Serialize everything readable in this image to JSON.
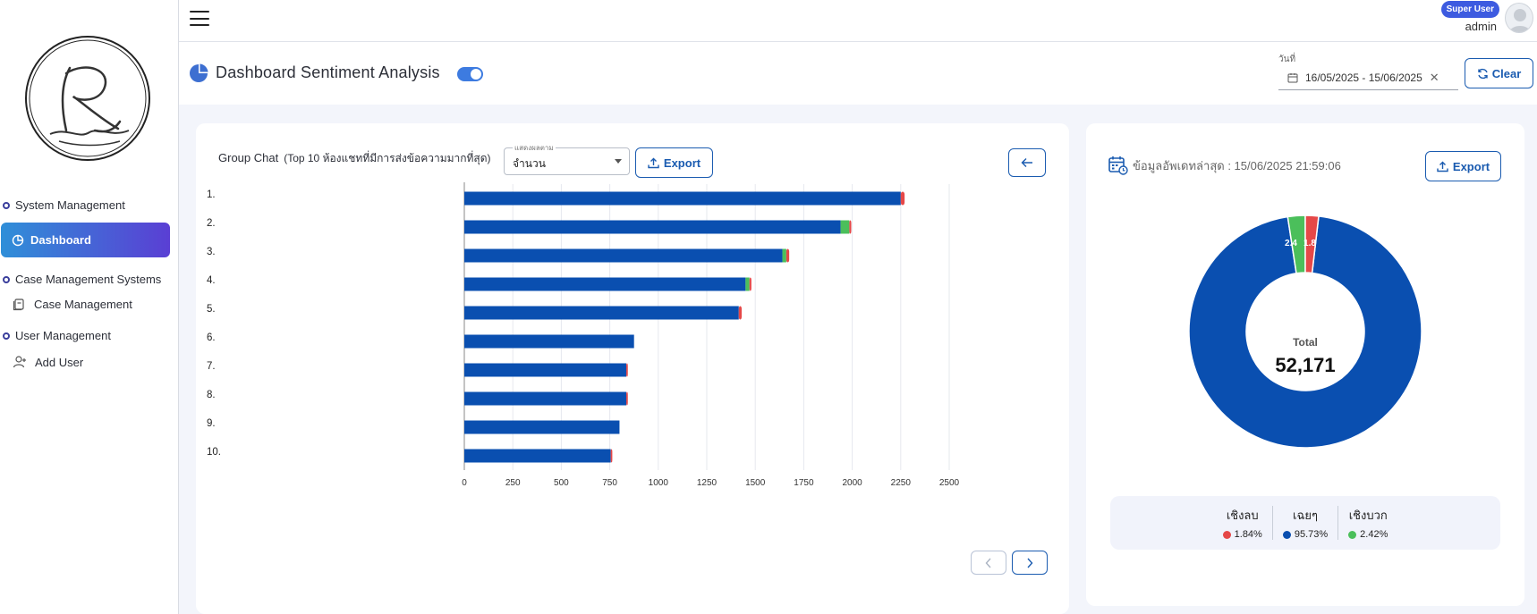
{
  "user": {
    "role": "Super User",
    "name": "admin"
  },
  "sidebar": {
    "system_management": "System Management",
    "dashboard": "Dashboard",
    "case_management_systems": "Case Management Systems",
    "case_management": "Case Management",
    "user_management": "User Management",
    "add_user": "Add User"
  },
  "header": {
    "title": "Dashboard Sentiment Analysis",
    "date_label": "วันที่",
    "date_range": "16/05/2025 - 15/06/2025",
    "clear_label": "Clear"
  },
  "group_chat": {
    "title": "Group Chat",
    "subtitle": "(Top 10 ห้องแชทที่มีการส่งข้อความมากที่สุด)",
    "select_legend": "แสดงผลตาม",
    "select_value": "จำนวน",
    "export_label": "Export"
  },
  "summary": {
    "last_update": "ข้อมูลอัพเดทล่าสุด : 15/06/2025 21:59:06",
    "export_label": "Export",
    "total_label": "Total",
    "total_value": "52,171",
    "neutral_pct_label": "95.7 %",
    "positive_slice_label": "2.4",
    "negative_slice_label": "1.8",
    "legend": [
      {
        "name": "เชิงลบ",
        "value": "1.84%",
        "color": "#e54848"
      },
      {
        "name": "เฉยๆ",
        "value": "95.73%",
        "color": "#0a4fb0"
      },
      {
        "name": "เชิงบวก",
        "value": "2.42%",
        "color": "#4bbf5b"
      }
    ]
  },
  "colors": {
    "neutral": "#0a4fb0",
    "negative": "#e54848",
    "positive": "#4bbf5b",
    "accent": "#1a5bb0"
  },
  "chart_data": [
    {
      "type": "bar",
      "orientation": "horizontal",
      "stacked": true,
      "categories": [
        "1.",
        "2.",
        "3.",
        "4.",
        "5.",
        "6.",
        "7.",
        "8.",
        "9.",
        "10."
      ],
      "series": [
        {
          "values": [
            2250,
            1940,
            1640,
            1450,
            1415,
            875,
            835,
            835,
            800,
            755
          ],
          "color": "#0a4fb0"
        },
        {
          "values": [
            0,
            45,
            20,
            20,
            0,
            0,
            0,
            0,
            0,
            0
          ],
          "color": "#4bbf5b"
        },
        {
          "values": [
            20,
            10,
            15,
            10,
            15,
            0,
            8,
            8,
            0,
            8
          ],
          "color": "#e54848"
        }
      ],
      "xticks": [
        0,
        250,
        500,
        750,
        1000,
        1250,
        1500,
        1750,
        2000,
        2250,
        2500
      ],
      "xlim": [
        0,
        2500
      ],
      "grid": true
    },
    {
      "type": "pie",
      "donut": true,
      "slices": [
        {
          "value": 95.73,
          "color": "#0a4fb0"
        },
        {
          "value": 2.42,
          "color": "#4bbf5b"
        },
        {
          "value": 1.84,
          "color": "#e54848"
        }
      ]
    }
  ]
}
